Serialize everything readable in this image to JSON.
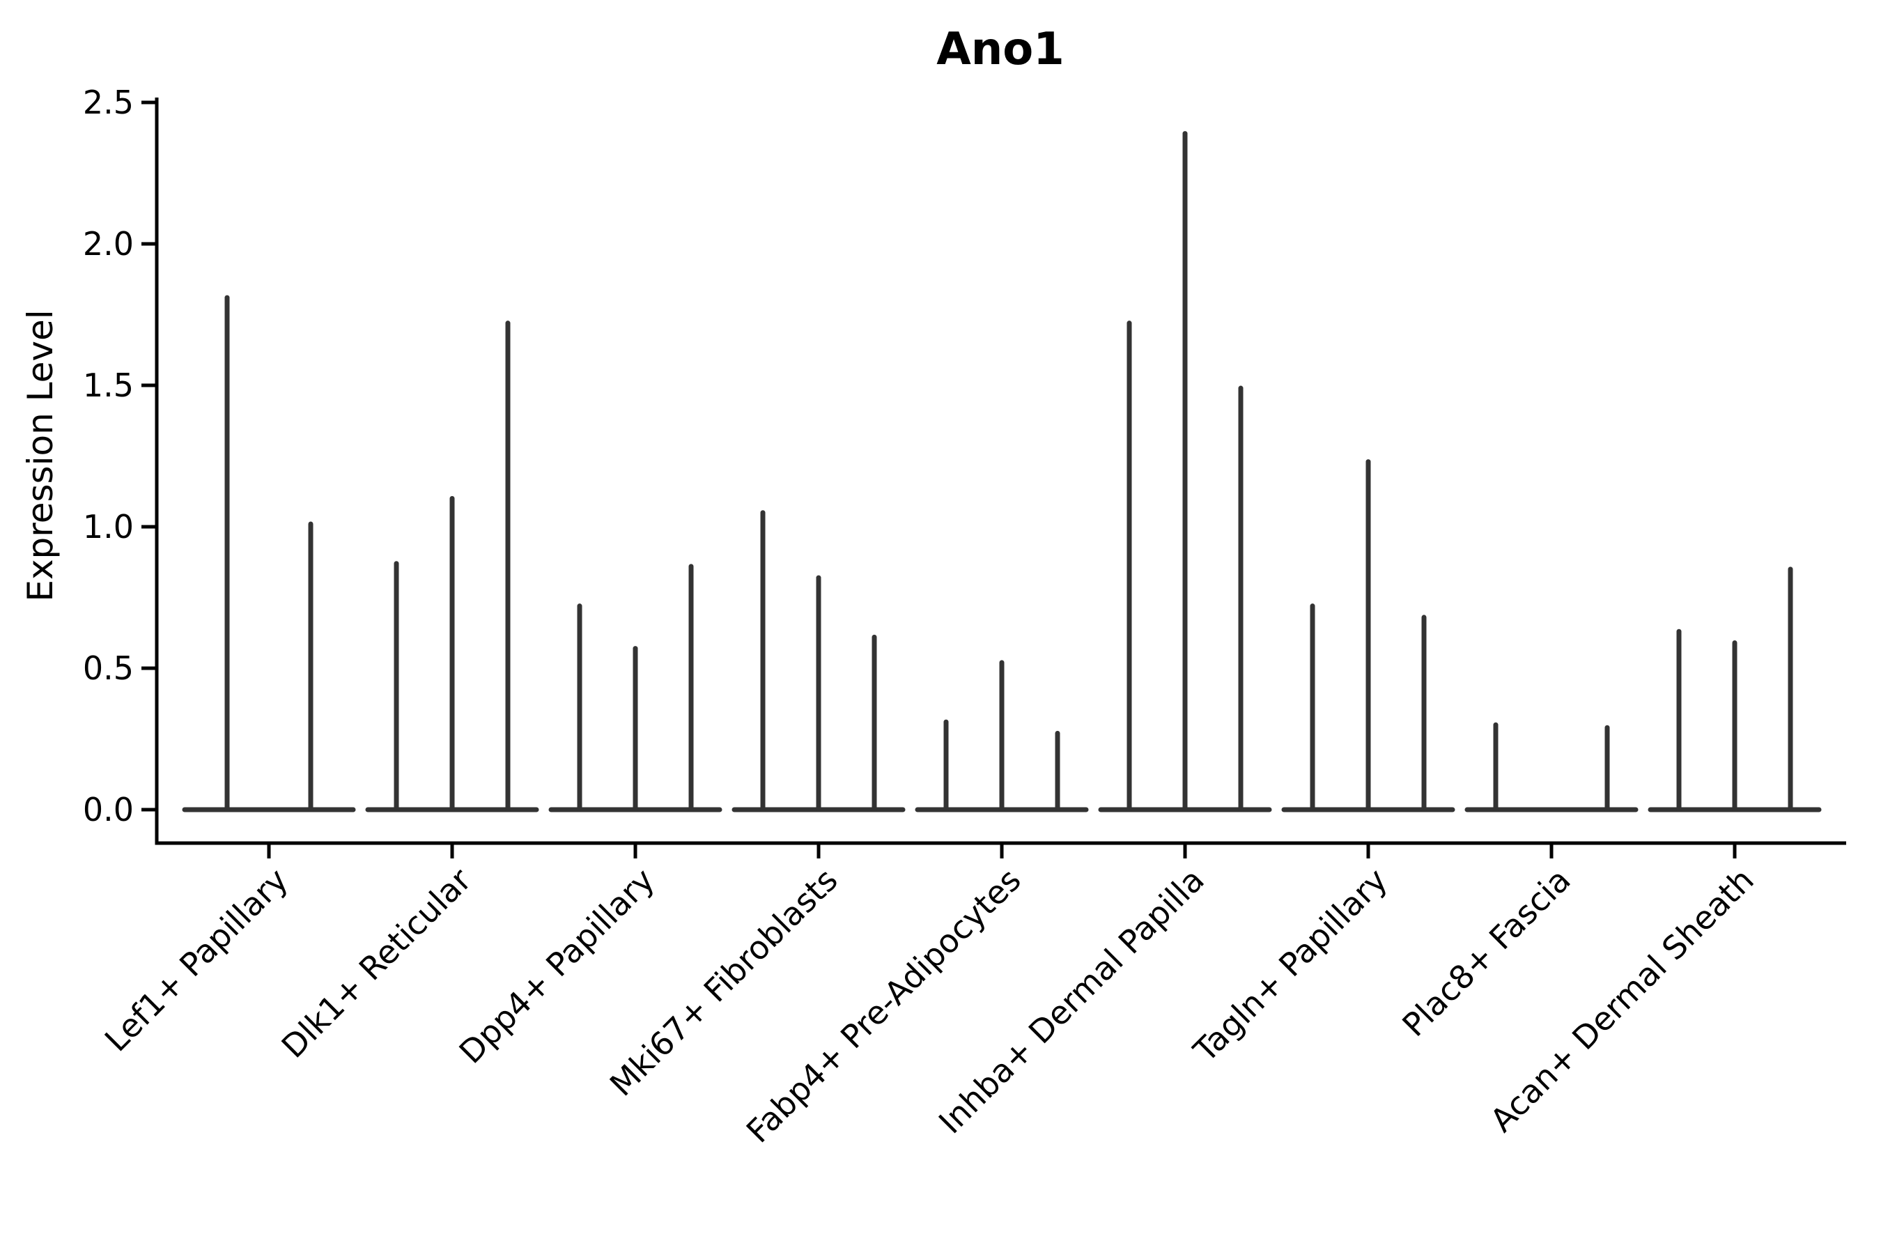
{
  "page": {
    "background": "#ffffff"
  },
  "chart_data": {
    "type": "violin",
    "title": "Ano1",
    "xlabel": "",
    "ylabel": "Expression Level",
    "ylim": [
      0,
      2.5
    ],
    "y_ticks": [
      0.0,
      0.5,
      1.0,
      1.5,
      2.0,
      2.5
    ],
    "y_tick_labels": [
      "0.0",
      "0.5",
      "1.0",
      "1.5",
      "2.0",
      "2.5"
    ],
    "grid": false,
    "legend_position": "none",
    "categories": [
      "Lef1+ Papillary",
      "Dlk1+ Reticular",
      "Dpp4+ Papillary",
      "Mki67+ Fibroblasts",
      "Fabp4+ Pre-Adipocytes",
      "Inhba+ Dermal Papilla",
      "Tagln+ Papillary",
      "Plac8+ Fascia",
      "Acan+ Dermal Sheath"
    ],
    "groups": [
      {
        "category": "Lef1+ Papillary",
        "violin_max_values": [
          1.81,
          1.01
        ]
      },
      {
        "category": "Dlk1+ Reticular",
        "violin_max_values": [
          0.87,
          1.1,
          1.72
        ]
      },
      {
        "category": "Dpp4+ Papillary",
        "violin_max_values": [
          0.72,
          0.57,
          0.86
        ]
      },
      {
        "category": "Mki67+ Fibroblasts",
        "violin_max_values": [
          1.05,
          0.82,
          0.61
        ]
      },
      {
        "category": "Fabp4+ Pre-Adipocytes",
        "violin_max_values": [
          0.31,
          0.52,
          0.27
        ]
      },
      {
        "category": "Inhba+ Dermal Papilla",
        "violin_max_values": [
          1.72,
          2.39,
          1.49
        ]
      },
      {
        "category": "Tagln+ Papillary",
        "violin_max_values": [
          0.72,
          1.23,
          0.68
        ]
      },
      {
        "category": "Plac8+ Fascia",
        "violin_max_values": [
          0.3,
          0.0,
          0.29
        ]
      },
      {
        "category": "Acan+ Dermal Sheath",
        "violin_max_values": [
          0.63,
          0.59,
          0.85
        ]
      }
    ],
    "shape_note": "Each violin is a near-degenerate distribution: a flat wide base at expression 0 with a single thin spike rising to its max value",
    "colors": {
      "violin": "#333333",
      "axis": "#000000",
      "text": "#000000",
      "background": "#ffffff"
    }
  }
}
